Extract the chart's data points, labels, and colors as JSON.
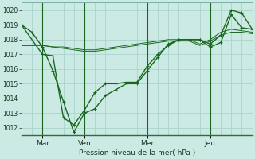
{
  "background_color": "#cceae4",
  "grid_color": "#aad4cc",
  "line_color": "#1a6620",
  "ylabel": "Pression niveau de la mer( hPa )",
  "ylim": [
    1011.5,
    1020.5
  ],
  "yticks": [
    1012,
    1013,
    1014,
    1015,
    1016,
    1017,
    1018,
    1019,
    1020
  ],
  "xtick_labels": [
    "Mar",
    "Ven",
    "Mer",
    "Jeu"
  ],
  "xtick_positions": [
    24,
    72,
    144,
    216
  ],
  "vlines_x": [
    24,
    72,
    144,
    216
  ],
  "xlim": [
    0,
    264
  ],
  "line1_x": [
    0,
    12,
    24,
    36,
    48,
    60,
    72,
    84,
    96,
    108,
    120,
    132,
    144,
    156,
    168,
    180,
    192,
    204,
    216,
    228,
    240,
    252,
    264
  ],
  "line1_y": [
    1019.0,
    1018.5,
    1017.5,
    1015.9,
    1013.8,
    1011.7,
    1013.0,
    1013.3,
    1014.2,
    1014.6,
    1015.0,
    1015.0,
    1015.9,
    1016.8,
    1017.7,
    1018.0,
    1018.0,
    1018.0,
    1017.7,
    1018.3,
    1020.0,
    1019.8,
    1018.7
  ],
  "line2_x": [
    0,
    24,
    36,
    48,
    60,
    72,
    84,
    96,
    108,
    120,
    132,
    144,
    156,
    168,
    180,
    192,
    204,
    216,
    228,
    240,
    252,
    264
  ],
  "line2_y": [
    1019.0,
    1017.0,
    1016.9,
    1012.7,
    1012.2,
    1013.2,
    1014.4,
    1015.0,
    1015.0,
    1015.1,
    1015.1,
    1016.2,
    1017.0,
    1017.6,
    1018.0,
    1018.0,
    1018.0,
    1017.5,
    1017.8,
    1019.7,
    1018.8,
    1018.7
  ],
  "line3_x": [
    0,
    12,
    24,
    36,
    48,
    60,
    72,
    84,
    96,
    108,
    120,
    132,
    144,
    156,
    168,
    180,
    192,
    204,
    216,
    228,
    240,
    252,
    264
  ],
  "line3_y": [
    1017.6,
    1017.6,
    1017.6,
    1017.5,
    1017.5,
    1017.4,
    1017.3,
    1017.3,
    1017.4,
    1017.5,
    1017.6,
    1017.7,
    1017.8,
    1017.9,
    1018.0,
    1018.0,
    1018.0,
    1017.7,
    1018.0,
    1018.5,
    1018.7,
    1018.6,
    1018.5
  ],
  "line4_x": [
    0,
    12,
    24,
    36,
    48,
    60,
    72,
    84,
    96,
    108,
    120,
    132,
    144,
    156,
    168,
    180,
    192,
    204,
    216,
    228,
    240,
    252,
    264
  ],
  "line4_y": [
    1017.6,
    1017.6,
    1017.6,
    1017.5,
    1017.4,
    1017.3,
    1017.2,
    1017.2,
    1017.3,
    1017.4,
    1017.5,
    1017.6,
    1017.7,
    1017.8,
    1017.9,
    1017.9,
    1017.9,
    1017.6,
    1017.9,
    1018.3,
    1018.5,
    1018.5,
    1018.4
  ]
}
